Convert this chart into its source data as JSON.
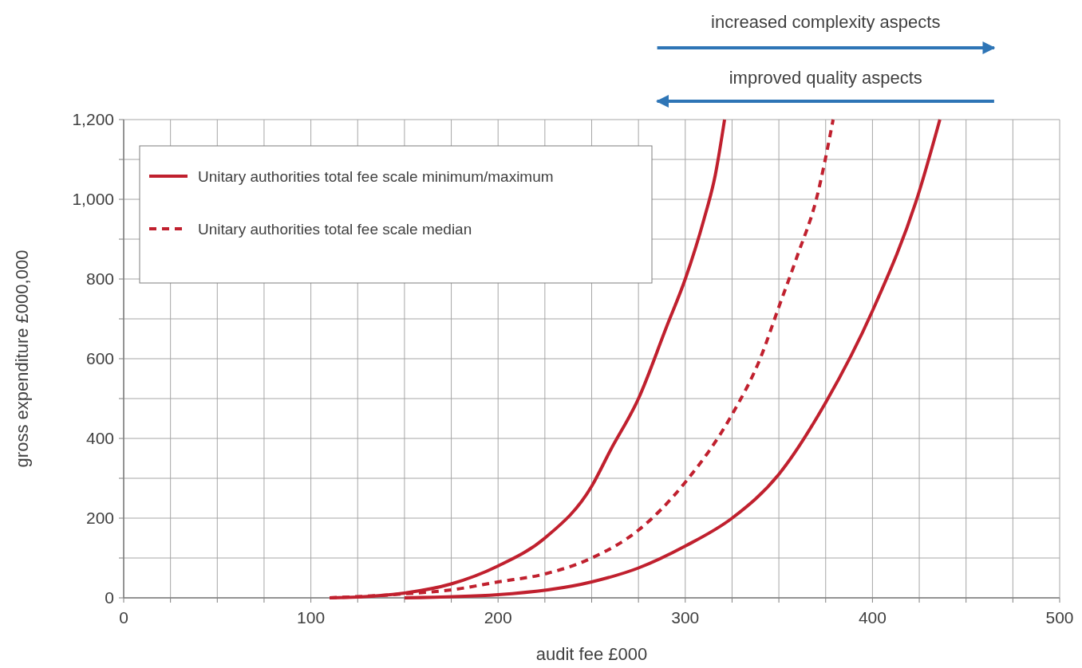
{
  "chart_data": {
    "type": "line",
    "xlabel": "audit fee £000",
    "ylabel": "gross expenditure £000,000",
    "annotations": [
      "increased complexity aspects",
      "improved quality aspects"
    ],
    "xlim": [
      0,
      500
    ],
    "ylim": [
      0,
      1200
    ],
    "xticks": [
      0,
      {
        "value": 25,
        "label": null
      },
      100,
      {
        "value": 50,
        "label": null
      },
      {
        "value": 75,
        "label": null
      },
      {
        "value": 125,
        "label": null
      },
      {
        "value": 150,
        "label": null
      },
      {
        "value": 175,
        "label": null
      },
      200,
      {
        "value": 225,
        "label": null
      },
      {
        "value": 250,
        "label": null
      },
      {
        "value": 275,
        "label": null
      },
      300,
      {
        "value": 325,
        "label": null
      },
      {
        "value": 350,
        "label": null
      },
      {
        "value": 375,
        "label": null
      },
      400,
      {
        "value": 425,
        "label": null
      },
      {
        "value": 450,
        "label": null
      },
      {
        "value": 475,
        "label": null
      },
      500
    ],
    "yticks": [
      0,
      {
        "value": 100,
        "label": null
      },
      200,
      {
        "value": 300,
        "label": null
      },
      400,
      {
        "value": 500,
        "label": null
      },
      600,
      {
        "value": 700,
        "label": null
      },
      800,
      {
        "value": 900,
        "label": null
      },
      {
        "value": 1000,
        "label": "1,000"
      },
      {
        "value": 1100,
        "label": null
      },
      {
        "value": 1200,
        "label": "1,200"
      }
    ],
    "grid": true,
    "legend": "top left",
    "series": [
      {
        "name": "Unitary authorities total fee scale minimum/maximum",
        "color": "#c0202e",
        "line_style": "solid",
        "x": [
          110,
          125,
          150,
          175,
          200,
          225,
          250,
          260,
          275,
          290,
          300,
          310,
          316,
          321
        ],
        "values": [
          0,
          2,
          12,
          35,
          80,
          150,
          280,
          370,
          500,
          680,
          800,
          950,
          1060,
          1200
        ]
      },
      {
        "name": "Unitary authorities total fee scale median",
        "color": "#c0202e",
        "line_style": "dashed",
        "x": [
          110,
          150,
          175,
          200,
          225,
          250,
          275,
          300,
          325,
          340,
          350,
          360,
          370,
          379
        ],
        "values": [
          0,
          10,
          20,
          40,
          60,
          100,
          170,
          290,
          460,
          600,
          730,
          860,
          1000,
          1200
        ]
      },
      {
        "color": "#c0202e",
        "line_style": "solid",
        "x": [
          150,
          200,
          250,
          275,
          300,
          325,
          350,
          375,
          400,
          425,
          436
        ],
        "values": [
          0,
          8,
          40,
          75,
          130,
          200,
          310,
          490,
          720,
          1020,
          1200
        ]
      }
    ]
  }
}
